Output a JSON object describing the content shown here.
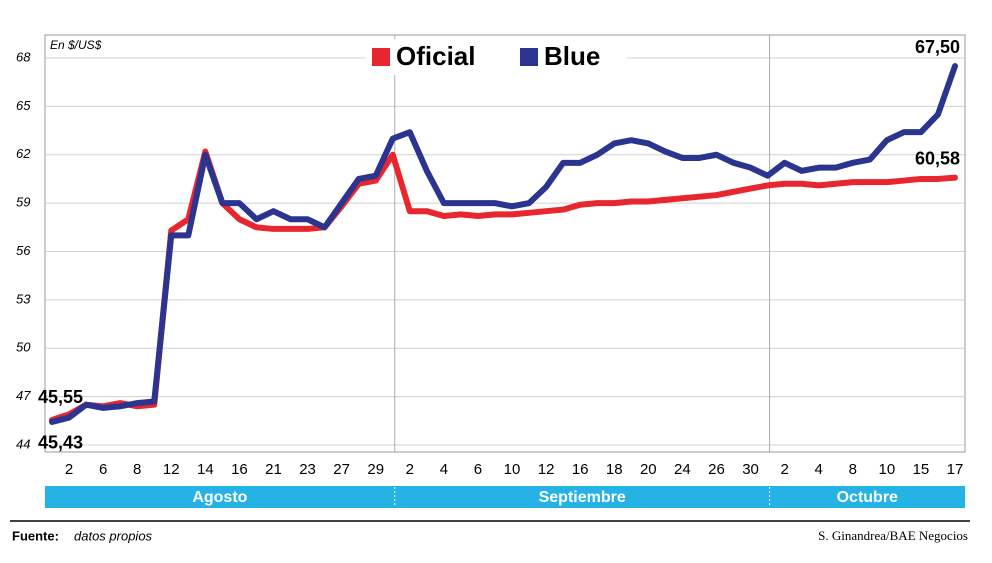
{
  "chart_data": {
    "type": "line",
    "ylabel": "En $/US$",
    "categories": [
      null,
      "2",
      null,
      "6",
      null,
      "8",
      null,
      "12",
      null,
      "14",
      null,
      "16",
      null,
      "21",
      null,
      "23",
      null,
      "27",
      null,
      "29",
      null,
      "2",
      null,
      "4",
      null,
      "6",
      null,
      "10",
      null,
      "12",
      null,
      "16",
      null,
      "18",
      null,
      "20",
      null,
      "24",
      null,
      "26",
      null,
      "30",
      null,
      "2",
      null,
      "4",
      null,
      "8",
      null,
      "10",
      null,
      "15",
      null,
      "17"
    ],
    "x_groups": [
      "Agosto",
      "Septiembre",
      "Octubre"
    ],
    "series": [
      {
        "name": "Oficial",
        "color": "#e8262d",
        "values": [
          45.55,
          45.9,
          46.5,
          46.4,
          46.6,
          46.4,
          46.5,
          57.3,
          58.0,
          62.2,
          59.0,
          58.0,
          57.5,
          57.4,
          57.4,
          57.4,
          57.5,
          58.8,
          60.2,
          60.4,
          62.0,
          58.5,
          58.5,
          58.2,
          58.3,
          58.2,
          58.3,
          58.3,
          58.4,
          58.5,
          58.6,
          58.9,
          59.0,
          59.0,
          59.1,
          59.1,
          59.2,
          59.3,
          59.4,
          59.5,
          59.7,
          59.9,
          60.1,
          60.2,
          60.2,
          60.1,
          60.2,
          60.3,
          60.3,
          60.3,
          60.4,
          60.5,
          60.5,
          60.58
        ],
        "value_labels": [
          "45,55",
          null,
          null,
          null,
          null,
          null,
          null,
          null,
          null,
          null,
          null,
          null,
          null,
          null,
          null,
          null,
          null,
          null,
          null,
          null,
          null,
          null,
          null,
          null,
          null,
          null,
          null,
          null,
          null,
          null,
          null,
          null,
          null,
          null,
          null,
          null,
          null,
          null,
          null,
          null,
          null,
          null,
          null,
          null,
          null,
          null,
          null,
          null,
          null,
          null,
          null,
          null,
          null,
          "60,58"
        ]
      },
      {
        "name": "Blue",
        "color": "#2b3590",
        "values": [
          45.43,
          45.7,
          46.5,
          46.3,
          46.4,
          46.6,
          46.7,
          57.0,
          57.0,
          62.0,
          59.0,
          59.0,
          58.0,
          58.5,
          58.0,
          58.0,
          57.5,
          59.0,
          60.5,
          60.7,
          63.0,
          63.4,
          61.0,
          59.0,
          59.0,
          59.0,
          59.0,
          58.8,
          59.0,
          60.0,
          61.5,
          61.5,
          62.0,
          62.7,
          62.9,
          62.7,
          62.2,
          61.8,
          61.8,
          62.0,
          61.5,
          61.2,
          60.7,
          61.5,
          61.0,
          61.2,
          61.2,
          61.5,
          61.7,
          62.9,
          63.4,
          63.4,
          64.5,
          67.5
        ],
        "value_labels": [
          "45,43",
          null,
          null,
          null,
          null,
          null,
          null,
          null,
          null,
          null,
          null,
          null,
          null,
          null,
          null,
          null,
          null,
          null,
          null,
          null,
          null,
          null,
          null,
          null,
          null,
          null,
          null,
          null,
          null,
          null,
          null,
          null,
          null,
          null,
          null,
          null,
          null,
          null,
          null,
          null,
          null,
          null,
          null,
          null,
          null,
          null,
          null,
          null,
          null,
          null,
          null,
          null,
          null,
          "67,50"
        ]
      }
    ],
    "ylim": [
      44,
      68
    ],
    "yticks": [
      44,
      47,
      50,
      53,
      56,
      59,
      62,
      65,
      68
    ],
    "grid": true,
    "source_label": "Fuente:",
    "source": "datos propios",
    "credit": "S. Ginandrea/BAE Negocios"
  }
}
